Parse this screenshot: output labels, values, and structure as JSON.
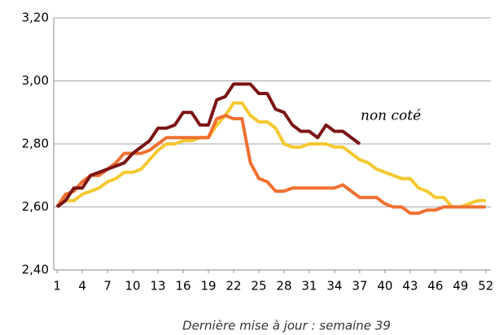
{
  "chart_data": {
    "type": "line",
    "annotation": "non coté",
    "footer": "Dernière mise à jour : semaine 39",
    "x": [
      1,
      2,
      3,
      4,
      5,
      6,
      7,
      8,
      9,
      10,
      11,
      12,
      13,
      14,
      15,
      16,
      17,
      18,
      19,
      20,
      21,
      22,
      23,
      24,
      25,
      26,
      27,
      28,
      29,
      30,
      31,
      32,
      33,
      34,
      35,
      36,
      37,
      38,
      39,
      40,
      41,
      42,
      43,
      44,
      45,
      46,
      47,
      48,
      49,
      50,
      51,
      52
    ],
    "series": [
      {
        "color": "#f5c830",
        "values": [
          2.6,
          2.62,
          2.62,
          2.64,
          2.65,
          2.66,
          2.68,
          2.69,
          2.71,
          2.71,
          2.72,
          2.75,
          2.78,
          2.8,
          2.8,
          2.81,
          2.81,
          2.82,
          2.82,
          2.86,
          2.89,
          2.93,
          2.93,
          2.89,
          2.87,
          2.87,
          2.85,
          2.8,
          2.79,
          2.79,
          2.8,
          2.8,
          2.8,
          2.79,
          2.79,
          2.77,
          2.75,
          2.74,
          2.72,
          2.71,
          2.7,
          2.69,
          2.69,
          2.66,
          2.65,
          2.63,
          2.63,
          2.6,
          2.6,
          2.61,
          2.62,
          2.62
        ]
      },
      {
        "color": "#f07030",
        "values": [
          2.6,
          2.64,
          2.65,
          2.68,
          2.7,
          2.7,
          2.72,
          2.74,
          2.77,
          2.77,
          2.77,
          2.78,
          2.8,
          2.82,
          2.82,
          2.82,
          2.82,
          2.82,
          2.82,
          2.88,
          2.89,
          2.88,
          2.88,
          2.74,
          2.69,
          2.68,
          2.65,
          2.65,
          2.66,
          2.66,
          2.66,
          2.66,
          2.66,
          2.66,
          2.67,
          2.65,
          2.63,
          2.63,
          2.63,
          2.61,
          2.6,
          2.6,
          2.58,
          2.58,
          2.59,
          2.59,
          2.6,
          2.6,
          2.6,
          2.6,
          2.6,
          2.6
        ]
      },
      {
        "color": "#7b1414",
        "values": [
          2.6,
          2.62,
          2.66,
          2.66,
          2.7,
          2.71,
          2.72,
          2.73,
          2.74,
          2.77,
          2.79,
          2.81,
          2.85,
          2.85,
          2.86,
          2.9,
          2.9,
          2.86,
          2.86,
          2.94,
          2.95,
          2.99,
          2.99,
          2.99,
          2.96,
          2.96,
          2.91,
          2.9,
          2.86,
          2.84,
          2.84,
          2.82,
          2.86,
          2.84,
          2.84,
          2.82,
          2.8,
          null,
          null,
          null,
          null,
          null,
          null,
          null,
          null,
          null,
          null,
          null,
          null,
          null,
          null,
          null
        ]
      }
    ],
    "xlim": [
      0.6,
      52.6
    ],
    "xticks": [
      1,
      4,
      7,
      10,
      13,
      16,
      19,
      22,
      25,
      28,
      31,
      34,
      37,
      40,
      43,
      46,
      49,
      52
    ],
    "ylim": [
      2.4,
      3.2
    ],
    "yticks": [
      {
        "value": 2.4,
        "label": "2,40"
      },
      {
        "value": 2.6,
        "label": "2,60"
      },
      {
        "value": 2.8,
        "label": "2,80"
      },
      {
        "value": 3.0,
        "label": "3,00"
      },
      {
        "value": 3.2,
        "label": "3,20"
      }
    ],
    "grid": true
  }
}
